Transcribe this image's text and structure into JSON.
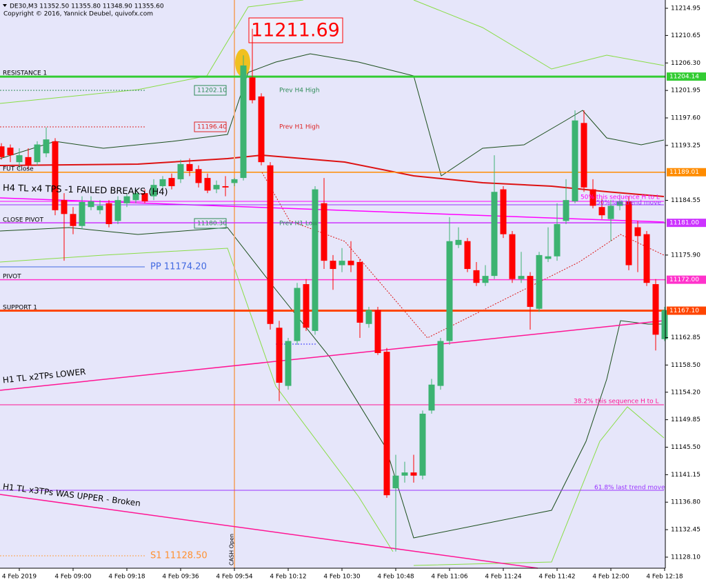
{
  "header": {
    "symbol_line": "DE30,M3  11352.50 11355.80 11348.90 11355.60",
    "copyright": "Copyright © 2016, Yannick Deubel, quivofx.com"
  },
  "chart_data": {
    "type": "candlestick",
    "categories": [
      null,
      null,
      "4 Feb 2019",
      null,
      null,
      null,
      null,
      null,
      "4 Feb 09:00",
      null,
      null,
      null,
      null,
      null,
      "4 Feb 09:18",
      null,
      null,
      null,
      null,
      null,
      "4 Feb 09:36",
      null,
      null,
      null,
      null,
      null,
      "4 Feb 09:54",
      null,
      null,
      null,
      null,
      null,
      "4 Feb 10:12",
      null,
      null,
      null,
      null,
      null,
      "4 Feb 10:30",
      null,
      null,
      null,
      null,
      null,
      "4 Feb 10:48",
      null,
      null,
      null,
      null,
      null,
      "4 Feb 11:06",
      null,
      null,
      null,
      null,
      null,
      "4 Feb 11:24",
      null,
      null,
      null,
      null,
      null,
      "4 Feb 11:42",
      null,
      null,
      null,
      null,
      null,
      "4 Feb 12:00",
      null,
      null,
      null,
      null,
      null,
      "4 Feb 12:18"
    ],
    "open": [
      11193.1,
      11192.9,
      11190.6,
      11191.4,
      11190.6,
      11192.0,
      11193.9,
      11184.6,
      11182.4,
      11180.5,
      11183.5,
      11183.0,
      11184.1,
      11181.3,
      11184.1,
      11184.6,
      11185.7,
      11185.2,
      11186.8,
      11188.1,
      11187.9,
      11190.3,
      11189.5,
      11188.1,
      11186.3,
      11186.8,
      11187.3,
      11188.1,
      11204.0,
      11201.0,
      11190.1,
      11164.4,
      11155.2,
      11162.3,
      11171.3,
      11163.9,
      11184.1,
      11175.0,
      11174.3,
      11175.0,
      11174.8,
      11165.0,
      11167.2,
      11160.6,
      11139.0,
      11141.0,
      11141.5,
      11141.0,
      11151.3,
      11155.2,
      11162.3,
      11177.5,
      11178.1,
      11173.5,
      11171.5,
      11172.6,
      11186.3,
      11179.2,
      11172.1,
      11172.6,
      11167.4,
      11175.3,
      11175.7,
      11181.3,
      11184.4,
      11196.8,
      11186.3,
      11183.5,
      11181.6,
      11183.7,
      11184.4,
      11180.3,
      11179.2,
      11171.3,
      11162.6
    ],
    "high": [
      11193.6,
      11193.4,
      11192.8,
      11192.8,
      11193.9,
      11196.1,
      11194.4,
      11185.7,
      11183.5,
      11185.2,
      11185.2,
      11184.6,
      11184.6,
      11185.2,
      11185.7,
      11186.3,
      11186.3,
      11187.9,
      11188.4,
      11188.8,
      11191.0,
      11191.2,
      11190.1,
      11188.8,
      11187.7,
      11188.4,
      11188.1,
      11207.5,
      11211.7,
      11201.5,
      11190.6,
      11165.5,
      11162.8,
      11171.5,
      11172.1,
      11186.8,
      11188.1,
      11175.9,
      11177.0,
      11178.1,
      11175.3,
      11167.7,
      11167.7,
      11161.2,
      11144.3,
      11143.2,
      11144.3,
      11151.3,
      11156.3,
      11162.8,
      11181.9,
      11180.3,
      11178.6,
      11174.8,
      11174.3,
      11191.7,
      11186.8,
      11179.7,
      11176.4,
      11173.2,
      11176.4,
      11180.3,
      11184.1,
      11187.9,
      11198.8,
      11198.8,
      11187.9,
      11185.2,
      11184.6,
      11185.5,
      11185.2,
      11181.3,
      11179.7,
      11172.1,
      11167.7
    ],
    "low": [
      11191.0,
      11190.6,
      11189.5,
      11189.5,
      11190.1,
      11191.4,
      11182.2,
      11175.0,
      11179.2,
      11180.0,
      11183.0,
      11182.4,
      11180.3,
      11180.8,
      11183.5,
      11184.1,
      11184.1,
      11184.6,
      11185.9,
      11186.3,
      11187.3,
      11188.4,
      11186.6,
      11185.7,
      11185.7,
      11185.2,
      11186.8,
      11187.7,
      11199.9,
      11190.1,
      11164.1,
      11152.8,
      11154.6,
      11161.7,
      11163.9,
      11163.3,
      11173.7,
      11170.4,
      11173.2,
      11173.2,
      11162.8,
      11164.4,
      11160.1,
      11137.5,
      11129.0,
      11139.9,
      11139.9,
      11140.4,
      11150.8,
      11154.6,
      11161.7,
      11177.0,
      11173.2,
      11171.0,
      11171.0,
      11172.1,
      11178.6,
      11171.5,
      11171.5,
      11164.1,
      11166.9,
      11174.8,
      11175.0,
      11180.8,
      11184.1,
      11185.9,
      11183.3,
      11181.6,
      11178.1,
      11183.0,
      11173.5,
      11173.2,
      11171.0,
      11160.8,
      11162.3
    ],
    "close": [
      11191.4,
      11191.7,
      11191.7,
      11190.1,
      11193.4,
      11194.2,
      11183.0,
      11182.4,
      11180.5,
      11184.3,
      11184.4,
      11183.7,
      11180.8,
      11184.6,
      11185.2,
      11185.7,
      11184.4,
      11187.0,
      11187.9,
      11186.8,
      11190.3,
      11189.2,
      11187.3,
      11186.1,
      11187.0,
      11186.6,
      11187.9,
      11205.9,
      11200.4,
      11190.6,
      11165.0,
      11155.7,
      11162.3,
      11170.7,
      11164.4,
      11186.3,
      11175.0,
      11173.7,
      11175.0,
      11174.3,
      11165.2,
      11167.2,
      11160.4,
      11137.9,
      11141.0,
      11141.5,
      11141.0,
      11150.8,
      11155.4,
      11162.3,
      11178.1,
      11178.3,
      11173.7,
      11171.5,
      11172.6,
      11185.9,
      11179.2,
      11172.1,
      11172.6,
      11167.7,
      11175.9,
      11175.7,
      11180.8,
      11184.6,
      11197.2,
      11186.6,
      11183.7,
      11182.2,
      11183.7,
      11184.4,
      11174.3,
      11178.9,
      11171.5,
      11163.3,
      11167.2
    ],
    "up_color": "#3cb371",
    "down_color": "#ff0000",
    "ylim": [
      11126.35,
      11216.26
    ],
    "yticks": [
      11214.95,
      11210.65,
      {
        "value": 11206.3,
        "label": "11206.30"
      },
      11201.95,
      {
        "value": 11197.6,
        "label": "11197.60"
      },
      11193.25,
      11184.55,
      {
        "value": 11175.9,
        "label": "11175.90"
      },
      11162.85,
      {
        "value": 11158.5,
        "label": "11158.50"
      },
      {
        "value": 11154.2,
        "label": "11154.20"
      },
      11149.85,
      {
        "value": 11145.5,
        "label": "11145.50"
      },
      11141.15,
      {
        "value": 11136.8,
        "label": "11136.80"
      },
      11132.45,
      {
        "value": 11128.1,
        "label": "11128.10"
      }
    ],
    "levels": [
      11204.14,
      11189.01,
      {
        "value": 11181,
        "label": "11181.00"
      },
      {
        "value": 11172,
        "label": "11172.00"
      },
      {
        "value": 11167.1,
        "label": "11167.10"
      }
    ],
    "level_colors": [
      "#33cc33",
      "#ff8c00",
      "#cc33ff",
      "#ff33cc",
      "#ff4500"
    ],
    "annotations": [
      "RESISTANCE 1",
      "SUPPORT 1",
      "PIVOT",
      "CLOSE PIVOT",
      "FUT Close",
      "PP 11174.20",
      "S1 11128.50",
      "11211.69",
      "11202.10",
      "11196.40",
      "11180.30",
      "Prev H4 High",
      "Prev H1 High",
      "Prev H1 Low",
      "H4 TL x4 TPS -1 FAILED BREAKS (H4)",
      "H1 TL x2TPs LOWER",
      "H1 TL x3TPs WAS UPPER - Broken",
      "50%   this sequence H to L",
      "50% last trend move",
      "38.2%   this sequence H to L",
      "61.8% last trend move",
      "CASH Open"
    ]
  }
}
